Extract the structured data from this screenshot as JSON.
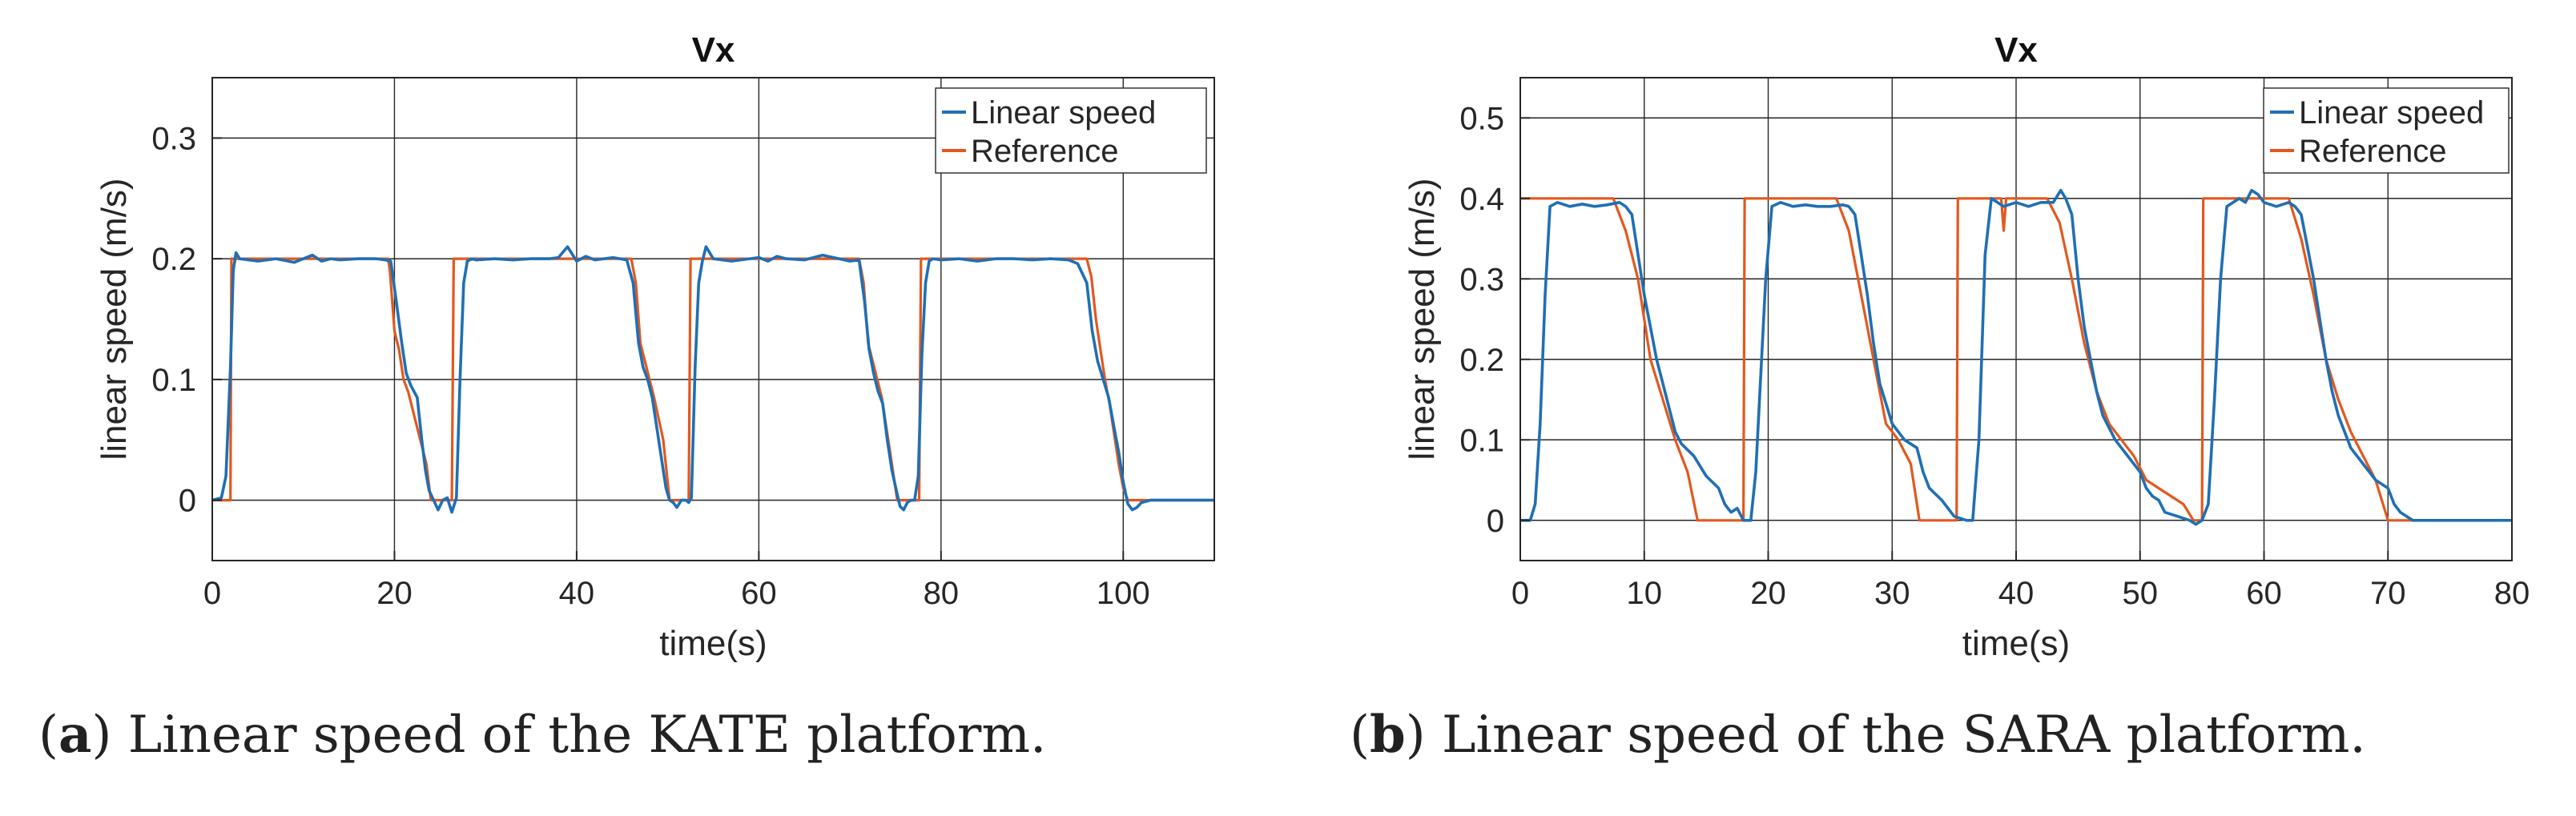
{
  "chart_data": [
    {
      "type": "line",
      "title": "Vx",
      "xlabel": "time(s)",
      "ylabel": "linear speed (m/s)",
      "xlim": [
        0,
        110
      ],
      "ylim": [
        -0.05,
        0.35
      ],
      "xticks": [
        0,
        20,
        40,
        60,
        80,
        100
      ],
      "yticks": [
        0,
        0.1,
        0.2,
        0.3
      ],
      "xtick_labels": [
        "0",
        "20",
        "40",
        "60",
        "80",
        "100"
      ],
      "ytick_labels": [
        "0",
        "0.1",
        "0.2",
        "0.3"
      ],
      "grid": true,
      "legend_position": "top-right",
      "series": [
        {
          "name": "Linear speed",
          "color": "#1f6fb4",
          "x": [
            0,
            1.0,
            1.5,
            2.0,
            2.3,
            2.6,
            3,
            5,
            7,
            9,
            10,
            11,
            12,
            13,
            14,
            16,
            18,
            19,
            19.6,
            20.2,
            20.8,
            21.3,
            21.8,
            22.5,
            23.0,
            23.4,
            23.8,
            24.3,
            24.8,
            25.3,
            25.8,
            26.3,
            26.8,
            27.2,
            27.6,
            28.0,
            28.5,
            29,
            31,
            33,
            35,
            37,
            38,
            39,
            40,
            41,
            42,
            44,
            45.5,
            46.2,
            46.8,
            47.3,
            47.8,
            48.3,
            48.8,
            49.3,
            49.8,
            50.2,
            50.6,
            51,
            51.5,
            52,
            52.3,
            52.6,
            53.0,
            53.4,
            53.8,
            54.2,
            55,
            57,
            59,
            60,
            61,
            62,
            63,
            65,
            67,
            70,
            71,
            71.6,
            72.1,
            72.6,
            73.1,
            73.6,
            74.1,
            74.6,
            75.1,
            75.5,
            75.9,
            76.3,
            76.7,
            77.1,
            77.5,
            77.9,
            78.3,
            78.7,
            79.1,
            80,
            82,
            84,
            86,
            88,
            90,
            92,
            94,
            95,
            96,
            96.6,
            97.2,
            97.8,
            98.4,
            99,
            99.5,
            100,
            100.5,
            101,
            101.5,
            102,
            103,
            104,
            110
          ],
          "values": [
            0,
            0.002,
            0.02,
            0.11,
            0.19,
            0.205,
            0.2,
            0.198,
            0.2,
            0.197,
            0.2,
            0.203,
            0.198,
            0.2,
            0.199,
            0.2,
            0.2,
            0.199,
            0.198,
            0.165,
            0.13,
            0.105,
            0.095,
            0.085,
            0.05,
            0.025,
            0.008,
            0.0,
            -0.008,
            0.0,
            0.002,
            -0.01,
            0.002,
            0.1,
            0.18,
            0.198,
            0.2,
            0.199,
            0.2,
            0.199,
            0.2,
            0.2,
            0.201,
            0.21,
            0.198,
            0.202,
            0.199,
            0.201,
            0.199,
            0.18,
            0.13,
            0.11,
            0.1,
            0.085,
            0.06,
            0.035,
            0.01,
            0.0,
            -0.002,
            -0.006,
            0.0,
            0.0,
            -0.002,
            0.002,
            0.11,
            0.18,
            0.198,
            0.21,
            0.2,
            0.198,
            0.2,
            0.201,
            0.198,
            0.202,
            0.2,
            0.199,
            0.203,
            0.198,
            0.199,
            0.165,
            0.125,
            0.105,
            0.09,
            0.08,
            0.05,
            0.025,
            0.008,
            -0.005,
            -0.008,
            -0.002,
            0.0,
            0.0,
            0.02,
            0.12,
            0.18,
            0.198,
            0.2,
            0.199,
            0.2,
            0.198,
            0.2,
            0.2,
            0.199,
            0.2,
            0.199,
            0.196,
            0.18,
            0.14,
            0.115,
            0.1,
            0.085,
            0.06,
            0.04,
            0.015,
            -0.003,
            -0.008,
            -0.006,
            -0.002,
            0.0,
            0.0,
            0.0
          ]
        },
        {
          "name": "Reference",
          "color": "#e2581e",
          "x": [
            0,
            2.0,
            2.1,
            19.3,
            19.5,
            20.0,
            20.5,
            21.0,
            21.5,
            22.5,
            23.5,
            24.0,
            26.3,
            26.5,
            46.0,
            46.5,
            47.0,
            47.5,
            48.0,
            48.5,
            49.5,
            50.2,
            52.3,
            52.5,
            71.0,
            71.5,
            72.0,
            72.5,
            73.0,
            73.5,
            74.2,
            75.2,
            77.6,
            77.8,
            96.0,
            96.5,
            97.0,
            97.5,
            98.0,
            98.5,
            99.0,
            99.5,
            100.0,
            100.5,
            110
          ],
          "values": [
            0,
            0,
            0.2,
            0.2,
            0.19,
            0.14,
            0.125,
            0.1,
            0.09,
            0.06,
            0.03,
            0.0,
            0.0,
            0.2,
            0.2,
            0.18,
            0.13,
            0.115,
            0.1,
            0.085,
            0.05,
            0.0,
            0.0,
            0.2,
            0.2,
            0.18,
            0.13,
            0.115,
            0.1,
            0.085,
            0.05,
            0.0,
            0.0,
            0.2,
            0.2,
            0.185,
            0.15,
            0.125,
            0.1,
            0.08,
            0.055,
            0.03,
            0.01,
            0.0,
            0.0
          ]
        }
      ]
    },
    {
      "type": "line",
      "title": "Vx",
      "xlabel": "time(s)",
      "ylabel": "linear speed (m/s)",
      "xlim": [
        0,
        80
      ],
      "ylim": [
        -0.05,
        0.55
      ],
      "xticks": [
        0,
        10,
        20,
        30,
        40,
        50,
        60,
        70,
        80
      ],
      "yticks": [
        0,
        0.1,
        0.2,
        0.3,
        0.4,
        0.5
      ],
      "xtick_labels": [
        "0",
        "10",
        "20",
        "30",
        "40",
        "50",
        "60",
        "70",
        "80"
      ],
      "ytick_labels": [
        "0",
        "0.1",
        "0.2",
        "0.3",
        "0.4",
        "0.5"
      ],
      "grid": true,
      "legend_position": "top-right",
      "series": [
        {
          "name": "Linear speed",
          "color": "#1f6fb4",
          "x": [
            0,
            0.8,
            1.2,
            1.6,
            2.0,
            2.4,
            3,
            4,
            5,
            6,
            7,
            8,
            8.5,
            9,
            9.5,
            10,
            10.5,
            11,
            11.5,
            12,
            12.5,
            13,
            14,
            15,
            16,
            16.5,
            17,
            17.5,
            18,
            18.3,
            18.6,
            19,
            19.4,
            19.8,
            20.3,
            21,
            22,
            23,
            24,
            25,
            26,
            26.5,
            27,
            27.5,
            28,
            28.5,
            29,
            30,
            31,
            32,
            32.5,
            33,
            34,
            35,
            36,
            36.5,
            37,
            37.5,
            38,
            39,
            40,
            41,
            42,
            43,
            43.6,
            44,
            44.5,
            45,
            45.5,
            46,
            46.5,
            47,
            48,
            49,
            50,
            50.5,
            51,
            51.5,
            52,
            53,
            54,
            54.5,
            55,
            55.5,
            56,
            56.5,
            57,
            58,
            58.5,
            59,
            59.5,
            60,
            61,
            62,
            62.5,
            63,
            63.5,
            64,
            64.5,
            65,
            65.5,
            66,
            66.5,
            67,
            68,
            69,
            70,
            70.5,
            71,
            72,
            73,
            74,
            80
          ],
          "values": [
            0,
            0.0,
            0.02,
            0.12,
            0.28,
            0.39,
            0.395,
            0.39,
            0.393,
            0.39,
            0.392,
            0.395,
            0.39,
            0.38,
            0.33,
            0.28,
            0.24,
            0.2,
            0.17,
            0.14,
            0.11,
            0.095,
            0.08,
            0.055,
            0.04,
            0.02,
            0.01,
            0.015,
            0.0,
            0.0,
            0.0,
            0.06,
            0.18,
            0.3,
            0.39,
            0.395,
            0.39,
            0.392,
            0.39,
            0.39,
            0.392,
            0.39,
            0.38,
            0.33,
            0.28,
            0.22,
            0.17,
            0.12,
            0.1,
            0.09,
            0.06,
            0.04,
            0.025,
            0.005,
            0.0,
            0.0,
            0.1,
            0.33,
            0.4,
            0.39,
            0.395,
            0.39,
            0.395,
            0.395,
            0.41,
            0.4,
            0.38,
            0.3,
            0.24,
            0.2,
            0.16,
            0.13,
            0.1,
            0.08,
            0.06,
            0.04,
            0.03,
            0.025,
            0.01,
            0.005,
            0.0,
            -0.005,
            0.0,
            0.02,
            0.15,
            0.3,
            0.39,
            0.4,
            0.395,
            0.41,
            0.405,
            0.395,
            0.39,
            0.395,
            0.39,
            0.38,
            0.34,
            0.3,
            0.25,
            0.2,
            0.16,
            0.13,
            0.11,
            0.09,
            0.07,
            0.05,
            0.04,
            0.02,
            0.01,
            0.0,
            0.0,
            0.0,
            0.0
          ]
        },
        {
          "name": "Reference",
          "color": "#e2581e",
          "x": [
            0,
            0.01,
            7.5,
            8.5,
            9.5,
            10.5,
            11.5,
            12.5,
            13.5,
            14.3,
            18.0,
            18.1,
            25.5,
            26.5,
            27.5,
            28.5,
            29.5,
            30.5,
            31.5,
            32.2,
            35.2,
            35.3,
            38.8,
            39.0,
            39.2,
            42.5,
            43.5,
            44.5,
            45.5,
            46.5,
            47.5,
            48.5,
            49.5,
            50.5,
            51.5,
            52.5,
            53.5,
            54.3,
            55.0,
            55.1,
            62.0,
            63.0,
            64.0,
            65.0,
            66.0,
            67.0,
            68.0,
            69.0,
            70.0,
            80
          ],
          "values": [
            0.4,
            0.4,
            0.4,
            0.36,
            0.3,
            0.2,
            0.15,
            0.1,
            0.06,
            0.0,
            0.0,
            0.4,
            0.4,
            0.36,
            0.28,
            0.2,
            0.12,
            0.1,
            0.07,
            0.0,
            0.0,
            0.4,
            0.4,
            0.36,
            0.4,
            0.4,
            0.37,
            0.3,
            0.22,
            0.16,
            0.12,
            0.1,
            0.08,
            0.05,
            0.04,
            0.03,
            0.02,
            0.0,
            0.0,
            0.4,
            0.4,
            0.35,
            0.28,
            0.2,
            0.15,
            0.11,
            0.08,
            0.05,
            0.0,
            0.0
          ]
        }
      ]
    }
  ],
  "captions": [
    {
      "label": "a",
      "text": " Linear speed of the KATE platform."
    },
    {
      "label": "b",
      "text": " Linear speed of the SARA platform."
    }
  ]
}
